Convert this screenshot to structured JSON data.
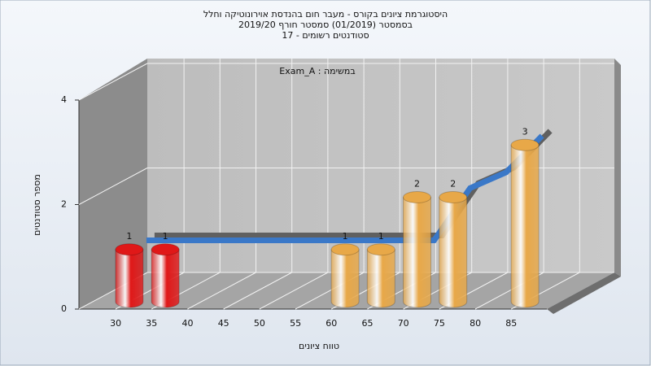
{
  "chart_data": {
    "type": "bar3d",
    "title": [
      "היסטוגרמת ציונים בקורס - מעבר חום בהנדסת אוירונוטיקה וחלל",
      "בסמסטר  (01/2019)  סמסטר חורף 2019/20",
      "סטודנטים רשומים - 17"
    ],
    "annotation": "במשימה : Exam_A",
    "x_label": "טווח ציונים",
    "y_label": "מספר סטודנטים",
    "categories": [
      "30",
      "35",
      "40",
      "45",
      "50",
      "55",
      "60",
      "65",
      "70",
      "75",
      "80",
      "85"
    ],
    "values": [
      1,
      1,
      0,
      0,
      0,
      0,
      1,
      1,
      2,
      2,
      0,
      3
    ],
    "colors": [
      "#e01818",
      "#e01818",
      "#e8a848",
      "#e8a848",
      "#e8a848",
      "#e8a848",
      "#e8a848",
      "#e8a848",
      "#e8a848",
      "#e8a848",
      "#e8a848",
      "#e8a848"
    ],
    "line_values": [
      1,
      1,
      1,
      1,
      1,
      1,
      1,
      1,
      1,
      2,
      2.3,
      3
    ],
    "line_color": "#3a78c8",
    "ylim": [
      0,
      4
    ],
    "yticks": [
      0,
      2,
      4
    ],
    "grid": true
  }
}
